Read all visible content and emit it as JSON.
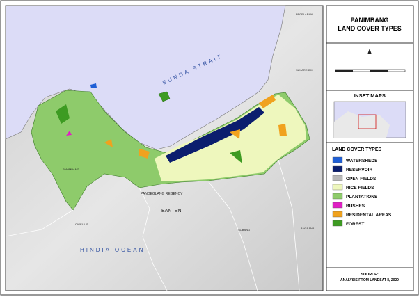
{
  "header": {
    "title": "PANIMBANG",
    "subtitle": "LAND COVER TYPES"
  },
  "inset": {
    "title": "INSET MAPS"
  },
  "legend": {
    "title": "LAND COVER TYPES",
    "items": [
      {
        "label": "WATERSHEDS",
        "color": "#1f5fd6"
      },
      {
        "label": "RESERVOIR",
        "color": "#0b1e6e"
      },
      {
        "label": "OPEN FIELDS",
        "color": "#b9b9b9"
      },
      {
        "label": "RICE FIELDS",
        "color": "#eef7bd"
      },
      {
        "label": "PLANTATIONS",
        "color": "#8ecb6b"
      },
      {
        "label": "BUSHES",
        "color": "#e01fc4"
      },
      {
        "label": "RESIDENTAL AREAS",
        "color": "#f0a21e"
      },
      {
        "label": "FOREST",
        "color": "#3d9b22"
      }
    ]
  },
  "map_labels": {
    "sea": "SUNDA STRAIT",
    "ocean": "HINDIA OCEAN",
    "province": "BANTEN",
    "regency": "PANDEGLANG REGENCY",
    "town": "PANIMBANG",
    "ne": "PAGELARAN",
    "e": "SUKARESMI",
    "sw": "CIGEULIS",
    "s": "SOBANG",
    "se": "ANGSANA"
  },
  "source": {
    "label": "SOURCE:",
    "text": "ANALYSIS FROM LANDSAT 8, 2020"
  }
}
